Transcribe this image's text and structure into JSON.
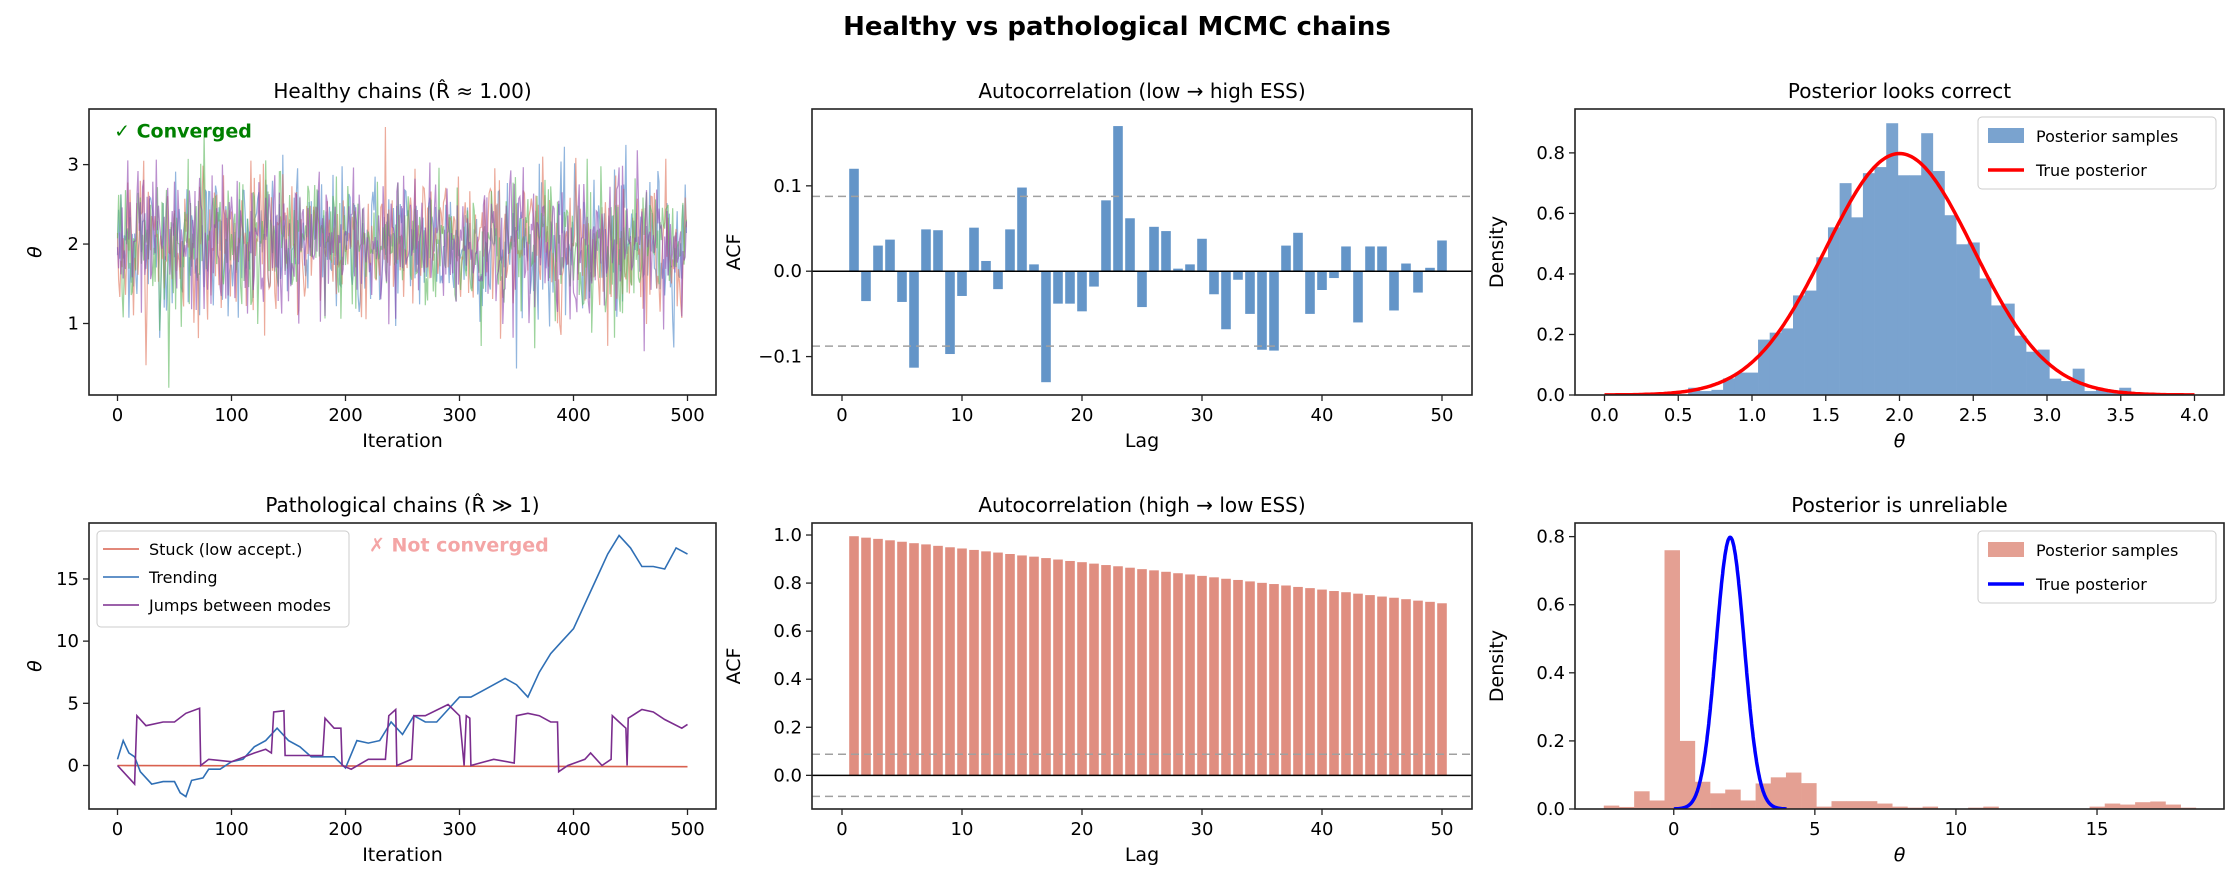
{
  "figure": {
    "title": "Healthy vs pathological MCMC chains"
  },
  "chart_data": [
    {
      "type": "line",
      "title": "Healthy chains (R̂ ≈ 1.00)",
      "xlabel": "Iteration",
      "ylabel": "θ",
      "xlim": [
        -25,
        525
      ],
      "ylim": [
        0.1,
        3.7
      ],
      "xticks": [
        "0",
        "100",
        "200",
        "300",
        "400",
        "500"
      ],
      "yticks": [
        "1",
        "2",
        "3"
      ],
      "annotation": {
        "text": "✓ Converged",
        "color": "#008000"
      },
      "n_iter": 500,
      "chains": [
        {
          "mean": 2.0,
          "sd": 0.45,
          "color": "#4a86c8"
        },
        {
          "mean": 2.0,
          "sd": 0.45,
          "color": "#e0735a"
        },
        {
          "mean": 2.0,
          "sd": 0.45,
          "color": "#5cb85c"
        },
        {
          "mean": 2.0,
          "sd": 0.45,
          "color": "#8e44ad"
        }
      ]
    },
    {
      "type": "bar",
      "title": "Autocorrelation (low → high ESS)",
      "xlabel": "Lag",
      "ylabel": "ACF",
      "xlim": [
        -2.5,
        52.5
      ],
      "ylim": [
        -0.145,
        0.19
      ],
      "xticks": [
        "0",
        "10",
        "20",
        "30",
        "40",
        "50"
      ],
      "yticks": [
        "−0.1",
        "0.0",
        "0.1"
      ],
      "significance_band": 0.0877,
      "color": "#6495c8",
      "lags": [
        1,
        2,
        3,
        4,
        5,
        6,
        7,
        8,
        9,
        10,
        11,
        12,
        13,
        14,
        15,
        16,
        17,
        18,
        19,
        20,
        21,
        22,
        23,
        24,
        25,
        26,
        27,
        28,
        29,
        30,
        31,
        32,
        33,
        34,
        35,
        36,
        37,
        38,
        39,
        40,
        41,
        42,
        43,
        44,
        45,
        46,
        47,
        48,
        49,
        50
      ],
      "values": [
        0.12,
        -0.035,
        0.03,
        0.037,
        -0.036,
        -0.113,
        0.049,
        0.048,
        -0.097,
        -0.029,
        0.051,
        0.012,
        -0.021,
        0.049,
        0.098,
        0.008,
        -0.13,
        -0.038,
        -0.038,
        -0.047,
        -0.018,
        0.083,
        0.17,
        0.062,
        -0.042,
        0.052,
        0.047,
        0.003,
        0.008,
        0.038,
        -0.027,
        -0.068,
        -0.01,
        -0.05,
        -0.092,
        -0.093,
        0.03,
        0.045,
        -0.05,
        -0.022,
        -0.008,
        0.029,
        -0.06,
        0.029,
        0.029,
        -0.046,
        0.009,
        -0.025,
        0.004,
        0.036
      ]
    },
    {
      "type": "histogram",
      "title": "Posterior looks correct",
      "xlabel": "θ",
      "ylabel": "Density",
      "xlim": [
        -0.2,
        4.2
      ],
      "ylim": [
        0,
        0.945
      ],
      "xticks": [
        "0.0",
        "0.5",
        "1.0",
        "1.5",
        "2.0",
        "2.5",
        "3.0",
        "3.5",
        "4.0"
      ],
      "yticks": [
        "0.0",
        "0.2",
        "0.4",
        "0.6",
        "0.8"
      ],
      "bin_start": 0.567,
      "bin_width": 0.079,
      "densities": [
        0.024,
        0.013,
        0.017,
        0.055,
        0.074,
        0.074,
        0.183,
        0.206,
        0.22,
        0.329,
        0.345,
        0.455,
        0.554,
        0.7,
        0.587,
        0.733,
        0.753,
        0.898,
        0.726,
        0.726,
        0.865,
        0.74,
        0.594,
        0.498,
        0.504,
        0.385,
        0.296,
        0.302,
        0.196,
        0.143,
        0.15,
        0.054,
        0.046,
        0.087,
        0.013,
        0.02,
        0.008,
        0.024
      ],
      "hist_color": "#7aa3cf",
      "true_posterior": {
        "mean": 2.0,
        "sd": 0.5,
        "range": [
          0,
          4
        ],
        "color": "#ff0000"
      },
      "legend": {
        "placement": "top-right",
        "entries": [
          "Posterior samples",
          "True posterior"
        ]
      }
    },
    {
      "type": "line",
      "title": "Pathological chains (R̂ ≫ 1)",
      "xlabel": "Iteration",
      "ylabel": "θ",
      "xlim": [
        -25,
        525
      ],
      "ylim": [
        -3.5,
        19.5
      ],
      "xticks": [
        "0",
        "100",
        "200",
        "300",
        "400",
        "500"
      ],
      "yticks": [
        "0",
        "5",
        "10",
        "15"
      ],
      "annotation": {
        "text": "✗ Not converged",
        "color": "#f4a5a5"
      },
      "legend": {
        "placement": "top-left"
      },
      "series": [
        {
          "name": "Stuck (low accept.)",
          "color": "#d9614f",
          "x": [
            0,
            500
          ],
          "y": [
            0,
            -0.1
          ]
        },
        {
          "name": "Trending",
          "color": "#2f6fb5",
          "x": [
            0,
            5,
            10,
            15,
            20,
            30,
            40,
            50,
            55,
            60,
            65,
            75,
            80,
            90,
            100,
            110,
            120,
            130,
            140,
            150,
            160,
            170,
            180,
            190,
            200,
            210,
            220,
            230,
            240,
            250,
            260,
            270,
            280,
            290,
            300,
            310,
            320,
            330,
            340,
            350,
            360,
            370,
            380,
            390,
            400,
            410,
            420,
            430,
            440,
            450,
            460,
            470,
            480,
            490,
            500
          ],
          "y": [
            0.5,
            2,
            1,
            0.7,
            -0.5,
            -1.5,
            -1.3,
            -1.3,
            -2.2,
            -2.5,
            -1.2,
            -1,
            -0.3,
            -0.3,
            0.3,
            0.5,
            1.5,
            2,
            3,
            2,
            1.5,
            0.7,
            0.7,
            0.7,
            -0.2,
            2,
            1.8,
            2,
            3.5,
            2.5,
            4,
            3.5,
            3.5,
            4.5,
            5.5,
            5.5,
            6,
            6.5,
            7,
            6.5,
            5.5,
            7.5,
            9,
            10,
            11,
            13,
            15,
            17,
            18.5,
            17.5,
            16,
            16,
            15.8,
            17.5,
            17
          ]
        },
        {
          "name": "Jumps between modes",
          "color": "#7b2d8e",
          "x": [
            0,
            5,
            15,
            17,
            25,
            40,
            50,
            60,
            72,
            73,
            80,
            100,
            120,
            130,
            135,
            137,
            146,
            147,
            160,
            180,
            182,
            190,
            196,
            197,
            205,
            220,
            235,
            238,
            244,
            245,
            258,
            260,
            270,
            290,
            300,
            304,
            306,
            309,
            310,
            330,
            348,
            350,
            360,
            370,
            380,
            386,
            387,
            395,
            410,
            415,
            425,
            433,
            434,
            440,
            446,
            447,
            448,
            460,
            470,
            480,
            495,
            500
          ],
          "y": [
            0,
            -0.5,
            -1.5,
            4,
            3.2,
            3.5,
            3.5,
            4.2,
            4.6,
            0,
            0.5,
            0.3,
            1,
            1.3,
            1,
            4.3,
            4.4,
            0.8,
            0.8,
            0.8,
            3.8,
            3,
            3,
            0,
            -0.3,
            0.5,
            0.5,
            4,
            4.5,
            0,
            0.5,
            4,
            4,
            4.9,
            4,
            0,
            4,
            3.8,
            0,
            0.5,
            0.2,
            4,
            4.2,
            4,
            3.5,
            3.5,
            -0.5,
            0,
            0.5,
            1,
            0,
            0.5,
            4,
            3.5,
            3,
            0,
            3.8,
            4.5,
            4.3,
            3.7,
            3,
            3.3
          ]
        }
      ]
    },
    {
      "type": "bar",
      "title": "Autocorrelation (high → low ESS)",
      "xlabel": "Lag",
      "ylabel": "ACF",
      "xlim": [
        -2.5,
        52.5
      ],
      "ylim": [
        -0.14,
        1.05
      ],
      "xticks": [
        "0",
        "10",
        "20",
        "30",
        "40",
        "50"
      ],
      "yticks": [
        "0.0",
        "0.2",
        "0.4",
        "0.6",
        "0.8",
        "1.0"
      ],
      "significance_band": 0.0877,
      "color": "#e08e80",
      "lags": [
        1,
        2,
        3,
        4,
        5,
        6,
        7,
        8,
        9,
        10,
        11,
        12,
        13,
        14,
        15,
        16,
        17,
        18,
        19,
        20,
        21,
        22,
        23,
        24,
        25,
        26,
        27,
        28,
        29,
        30,
        31,
        32,
        33,
        34,
        35,
        36,
        37,
        38,
        39,
        40,
        41,
        42,
        43,
        44,
        45,
        46,
        47,
        48,
        49,
        50
      ],
      "values": [
        0.995,
        0.989,
        0.984,
        0.978,
        0.972,
        0.966,
        0.961,
        0.955,
        0.949,
        0.944,
        0.938,
        0.932,
        0.927,
        0.921,
        0.915,
        0.91,
        0.904,
        0.898,
        0.892,
        0.887,
        0.881,
        0.875,
        0.87,
        0.864,
        0.858,
        0.853,
        0.847,
        0.841,
        0.836,
        0.83,
        0.824,
        0.818,
        0.813,
        0.807,
        0.801,
        0.796,
        0.79,
        0.784,
        0.779,
        0.773,
        0.767,
        0.762,
        0.756,
        0.75,
        0.744,
        0.739,
        0.733,
        0.727,
        0.722,
        0.716
      ]
    },
    {
      "type": "histogram",
      "title": "Posterior is unreliable",
      "xlabel": "θ",
      "ylabel": "Density",
      "xlim": [
        -3.5,
        19.5
      ],
      "ylim": [
        0,
        0.84
      ],
      "xticks": [
        "0",
        "5",
        "10",
        "15"
      ],
      "yticks": [
        "0.0",
        "0.2",
        "0.4",
        "0.6",
        "0.8"
      ],
      "bin_start": -2.48,
      "bin_width": 0.538,
      "densities": [
        0.01,
        0.006,
        0.052,
        0.025,
        0.76,
        0.2,
        0.08,
        0.046,
        0.057,
        0.025,
        0.075,
        0.093,
        0.107,
        0.076,
        0.007,
        0.023,
        0.023,
        0.023,
        0.016,
        0.007,
        0.004,
        0.007,
        0,
        0,
        0.004,
        0.007,
        0,
        0,
        0,
        0,
        0,
        0,
        0.007,
        0.016,
        0.013,
        0.02,
        0.022,
        0.013,
        0.004
      ],
      "hist_color": "#e4a093",
      "true_posterior": {
        "mean": 2.0,
        "sd": 0.5,
        "range": [
          0,
          4
        ],
        "color": "#0000ff"
      },
      "legend": {
        "placement": "top-right",
        "entries": [
          "Posterior samples",
          "True posterior"
        ]
      }
    }
  ]
}
